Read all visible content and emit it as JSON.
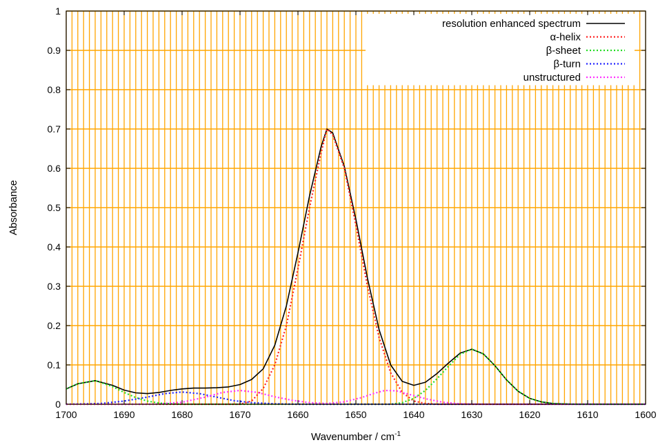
{
  "chart_data": {
    "type": "line",
    "title": "",
    "xlabel": "Wavenumber / cm",
    "xlabel_superscript": "-1",
    "ylabel": "Absorbance",
    "xlim": [
      1700,
      1600
    ],
    "ylim": [
      0,
      1
    ],
    "x_reversed": true,
    "x_ticks": [
      "1700",
      "1690",
      "1680",
      "1670",
      "1660",
      "1650",
      "1640",
      "1630",
      "1620",
      "1610",
      "1600"
    ],
    "y_ticks": [
      "0",
      "0.1",
      "0.2",
      "0.3",
      "0.4",
      "0.5",
      "0.6",
      "0.7",
      "0.8",
      "0.9",
      "1"
    ],
    "grid": true,
    "grid_color": "#ffa500",
    "plot_background": "#ffffff",
    "legend_position": "top-right",
    "series": [
      {
        "name": "resolution enhanced spectrum",
        "color": "#000000",
        "style": "solid",
        "points": [
          [
            1700,
            0.039
          ],
          [
            1698,
            0.052
          ],
          [
            1695,
            0.06
          ],
          [
            1692,
            0.048
          ],
          [
            1690,
            0.036
          ],
          [
            1688,
            0.029
          ],
          [
            1686,
            0.027
          ],
          [
            1684,
            0.03
          ],
          [
            1682,
            0.035
          ],
          [
            1680,
            0.039
          ],
          [
            1678,
            0.041
          ],
          [
            1676,
            0.041
          ],
          [
            1674,
            0.042
          ],
          [
            1672,
            0.044
          ],
          [
            1670,
            0.05
          ],
          [
            1668,
            0.063
          ],
          [
            1666,
            0.09
          ],
          [
            1664,
            0.15
          ],
          [
            1662,
            0.25
          ],
          [
            1660,
            0.385
          ],
          [
            1658,
            0.53
          ],
          [
            1656,
            0.655
          ],
          [
            1655,
            0.7
          ],
          [
            1654,
            0.69
          ],
          [
            1652,
            0.605
          ],
          [
            1650,
            0.47
          ],
          [
            1648,
            0.32
          ],
          [
            1646,
            0.19
          ],
          [
            1644,
            0.1
          ],
          [
            1642,
            0.058
          ],
          [
            1640,
            0.048
          ],
          [
            1638,
            0.056
          ],
          [
            1636,
            0.078
          ],
          [
            1634,
            0.105
          ],
          [
            1632,
            0.13
          ],
          [
            1630,
            0.14
          ],
          [
            1628,
            0.128
          ],
          [
            1626,
            0.098
          ],
          [
            1624,
            0.062
          ],
          [
            1622,
            0.033
          ],
          [
            1620,
            0.015
          ],
          [
            1618,
            0.006
          ],
          [
            1616,
            0.002
          ],
          [
            1612,
            0
          ],
          [
            1600,
            0
          ]
        ]
      },
      {
        "name": "α-helix",
        "color": "#ff2020",
        "style": "dotted",
        "points": [
          [
            1700,
            0
          ],
          [
            1670,
            0
          ],
          [
            1668,
            0.008
          ],
          [
            1666,
            0.04
          ],
          [
            1664,
            0.1
          ],
          [
            1662,
            0.2
          ],
          [
            1660,
            0.345
          ],
          [
            1658,
            0.5
          ],
          [
            1656,
            0.64
          ],
          [
            1655,
            0.7
          ],
          [
            1654,
            0.685
          ],
          [
            1652,
            0.6
          ],
          [
            1650,
            0.455
          ],
          [
            1648,
            0.3
          ],
          [
            1646,
            0.17
          ],
          [
            1644,
            0.08
          ],
          [
            1642,
            0.03
          ],
          [
            1640,
            0.008
          ],
          [
            1638,
            0.002
          ],
          [
            1636,
            0
          ],
          [
            1600,
            0
          ]
        ]
      },
      {
        "name": "β-sheet",
        "color": "#22dd22",
        "style": "dotted",
        "points": [
          [
            1700,
            0.039
          ],
          [
            1698,
            0.052
          ],
          [
            1695,
            0.06
          ],
          [
            1692,
            0.045
          ],
          [
            1690,
            0.03
          ],
          [
            1688,
            0.017
          ],
          [
            1686,
            0.008
          ],
          [
            1684,
            0.003
          ],
          [
            1682,
            0.001
          ],
          [
            1680,
            0
          ],
          [
            1644,
            0
          ],
          [
            1642,
            0.004
          ],
          [
            1640,
            0.015
          ],
          [
            1638,
            0.035
          ],
          [
            1636,
            0.065
          ],
          [
            1634,
            0.097
          ],
          [
            1632,
            0.127
          ],
          [
            1630,
            0.14
          ],
          [
            1628,
            0.128
          ],
          [
            1626,
            0.098
          ],
          [
            1624,
            0.062
          ],
          [
            1622,
            0.033
          ],
          [
            1620,
            0.015
          ],
          [
            1618,
            0.006
          ],
          [
            1616,
            0.002
          ],
          [
            1612,
            0
          ],
          [
            1600,
            0
          ]
        ]
      },
      {
        "name": "β-turn",
        "color": "#2020ff",
        "style": "dotted",
        "points": [
          [
            1700,
            0
          ],
          [
            1694,
            0.002
          ],
          [
            1690,
            0.008
          ],
          [
            1686,
            0.018
          ],
          [
            1683,
            0.027
          ],
          [
            1680,
            0.031
          ],
          [
            1677,
            0.027
          ],
          [
            1674,
            0.018
          ],
          [
            1671,
            0.009
          ],
          [
            1668,
            0.004
          ],
          [
            1664,
            0.001
          ],
          [
            1660,
            0
          ],
          [
            1600,
            0
          ]
        ]
      },
      {
        "name": "unstructured",
        "color": "#ff30ff",
        "style": "dotted",
        "points": [
          [
            1700,
            0
          ],
          [
            1685,
            0
          ],
          [
            1680,
            0.005
          ],
          [
            1676,
            0.018
          ],
          [
            1673,
            0.03
          ],
          [
            1670,
            0.035
          ],
          [
            1667,
            0.03
          ],
          [
            1664,
            0.019
          ],
          [
            1661,
            0.01
          ],
          [
            1658,
            0.004
          ],
          [
            1655,
            0.002
          ],
          [
            1652,
            0.006
          ],
          [
            1649,
            0.017
          ],
          [
            1647,
            0.027
          ],
          [
            1645,
            0.035
          ],
          [
            1643,
            0.034
          ],
          [
            1641,
            0.026
          ],
          [
            1638,
            0.014
          ],
          [
            1635,
            0.005
          ],
          [
            1632,
            0.001
          ],
          [
            1628,
            0
          ],
          [
            1600,
            0
          ]
        ]
      }
    ]
  }
}
